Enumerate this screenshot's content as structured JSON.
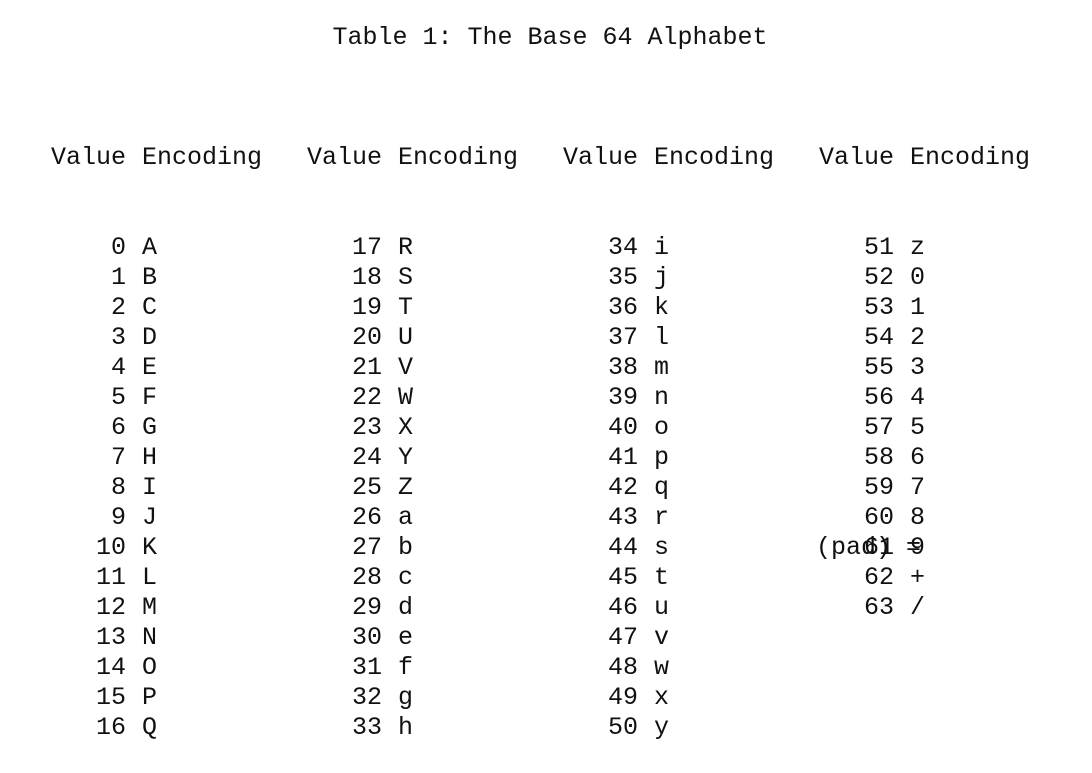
{
  "title": "Table 1: The Base 64 Alphabet",
  "header": {
    "value_label": "Value",
    "encoding_label": "Encoding"
  },
  "columns": [
    {
      "rows": [
        {
          "value": "0",
          "encoding": "A"
        },
        {
          "value": "1",
          "encoding": "B"
        },
        {
          "value": "2",
          "encoding": "C"
        },
        {
          "value": "3",
          "encoding": "D"
        },
        {
          "value": "4",
          "encoding": "E"
        },
        {
          "value": "5",
          "encoding": "F"
        },
        {
          "value": "6",
          "encoding": "G"
        },
        {
          "value": "7",
          "encoding": "H"
        },
        {
          "value": "8",
          "encoding": "I"
        },
        {
          "value": "9",
          "encoding": "J"
        },
        {
          "value": "10",
          "encoding": "K"
        },
        {
          "value": "11",
          "encoding": "L"
        },
        {
          "value": "12",
          "encoding": "M"
        },
        {
          "value": "13",
          "encoding": "N"
        },
        {
          "value": "14",
          "encoding": "O"
        },
        {
          "value": "15",
          "encoding": "P"
        },
        {
          "value": "16",
          "encoding": "Q"
        }
      ]
    },
    {
      "rows": [
        {
          "value": "17",
          "encoding": "R"
        },
        {
          "value": "18",
          "encoding": "S"
        },
        {
          "value": "19",
          "encoding": "T"
        },
        {
          "value": "20",
          "encoding": "U"
        },
        {
          "value": "21",
          "encoding": "V"
        },
        {
          "value": "22",
          "encoding": "W"
        },
        {
          "value": "23",
          "encoding": "X"
        },
        {
          "value": "24",
          "encoding": "Y"
        },
        {
          "value": "25",
          "encoding": "Z"
        },
        {
          "value": "26",
          "encoding": "a"
        },
        {
          "value": "27",
          "encoding": "b"
        },
        {
          "value": "28",
          "encoding": "c"
        },
        {
          "value": "29",
          "encoding": "d"
        },
        {
          "value": "30",
          "encoding": "e"
        },
        {
          "value": "31",
          "encoding": "f"
        },
        {
          "value": "32",
          "encoding": "g"
        },
        {
          "value": "33",
          "encoding": "h"
        }
      ]
    },
    {
      "rows": [
        {
          "value": "34",
          "encoding": "i"
        },
        {
          "value": "35",
          "encoding": "j"
        },
        {
          "value": "36",
          "encoding": "k"
        },
        {
          "value": "37",
          "encoding": "l"
        },
        {
          "value": "38",
          "encoding": "m"
        },
        {
          "value": "39",
          "encoding": "n"
        },
        {
          "value": "40",
          "encoding": "o"
        },
        {
          "value": "41",
          "encoding": "p"
        },
        {
          "value": "42",
          "encoding": "q"
        },
        {
          "value": "43",
          "encoding": "r"
        },
        {
          "value": "44",
          "encoding": "s"
        },
        {
          "value": "45",
          "encoding": "t"
        },
        {
          "value": "46",
          "encoding": "u"
        },
        {
          "value": "47",
          "encoding": "v"
        },
        {
          "value": "48",
          "encoding": "w"
        },
        {
          "value": "49",
          "encoding": "x"
        },
        {
          "value": "50",
          "encoding": "y"
        }
      ]
    },
    {
      "rows": [
        {
          "value": "51",
          "encoding": "z"
        },
        {
          "value": "52",
          "encoding": "0"
        },
        {
          "value": "53",
          "encoding": "1"
        },
        {
          "value": "54",
          "encoding": "2"
        },
        {
          "value": "55",
          "encoding": "3"
        },
        {
          "value": "56",
          "encoding": "4"
        },
        {
          "value": "57",
          "encoding": "5"
        },
        {
          "value": "58",
          "encoding": "6"
        },
        {
          "value": "59",
          "encoding": "7"
        },
        {
          "value": "60",
          "encoding": "8"
        },
        {
          "value": "61",
          "encoding": "9"
        },
        {
          "value": "62",
          "encoding": "+"
        },
        {
          "value": "63",
          "encoding": "/"
        }
      ]
    }
  ],
  "pad": {
    "label": "(pad)",
    "encoding": "="
  }
}
